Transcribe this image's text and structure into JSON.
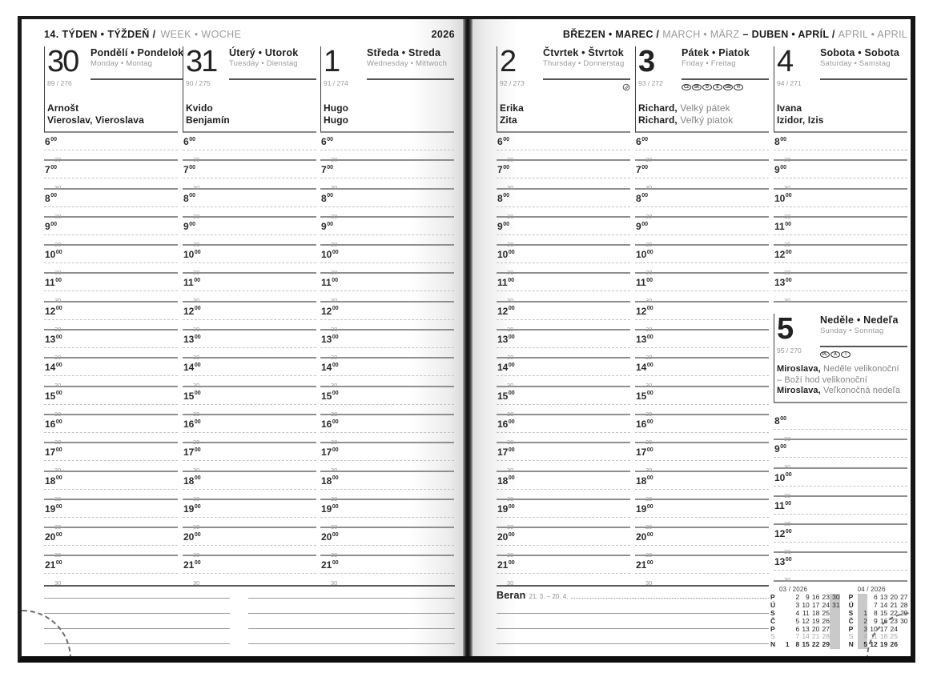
{
  "page_left": {
    "week_header": {
      "bold": "14. TÝDEN • TÝŽDEŇ /",
      "light": "WEEK • WOCHE",
      "year": "2026"
    },
    "days": [
      {
        "num": "30",
        "emph": false,
        "name_local": "Pondělí • Pondelok",
        "name_intl": "Monday • Montag",
        "ordinal": "89 / 276",
        "badges": [],
        "moon": false,
        "names": [
          [
            {
              "t": "Arnošt",
              "s": "b"
            }
          ],
          [
            {
              "t": "Vieroslav, Vieroslava",
              "s": "b"
            }
          ]
        ],
        "hours": {
          "from": 6,
          "to": 21,
          "minutes": "00",
          "half": "30"
        }
      },
      {
        "num": "31",
        "emph": false,
        "name_local": "Úterý • Utorok",
        "name_intl": "Tuesday • Dienstag",
        "ordinal": "90 / 275",
        "badges": [],
        "moon": false,
        "names": [
          [
            {
              "t": "Kvido",
              "s": "b"
            }
          ],
          [
            {
              "t": "Benjamín",
              "s": "b"
            }
          ]
        ],
        "hours": {
          "from": 6,
          "to": 21,
          "minutes": "00",
          "half": "30"
        }
      },
      {
        "num": "1",
        "emph": false,
        "name_local": "Středa • Streda",
        "name_intl": "Wednesday • Mittwoch",
        "ordinal": "91 / 274",
        "badges": [],
        "moon": false,
        "names": [
          [
            {
              "t": "Hugo",
              "s": "b"
            }
          ],
          [
            {
              "t": "Hugo",
              "s": "b"
            }
          ]
        ],
        "hours": {
          "from": 6,
          "to": 21,
          "minutes": "00",
          "half": "30"
        }
      }
    ]
  },
  "page_right": {
    "month_header": {
      "segments": [
        {
          "t": "BŘEZEN • MAREC /",
          "s": "b"
        },
        {
          "t": "MARCH • MÄRZ",
          "s": "g"
        },
        {
          "t": "–",
          "s": "b"
        },
        {
          "t": "DUBEN • APRÍL /",
          "s": "b"
        },
        {
          "t": "APRIL • APRIL",
          "s": "g"
        }
      ]
    },
    "days": [
      {
        "num": "2",
        "emph": false,
        "name_local": "Čtvrtek • Štvrtok",
        "name_intl": "Thursday • Donnerstag",
        "ordinal": "92 / 273",
        "badges": [],
        "moon": true,
        "names": [
          [
            {
              "t": "Erika",
              "s": "b"
            }
          ],
          [
            {
              "t": "Zita",
              "s": "b"
            }
          ]
        ],
        "hours": {
          "from": 6,
          "to": 21,
          "minutes": "00",
          "half": "30"
        }
      },
      {
        "num": "3",
        "emph": true,
        "name_local": "Pátek • Piatok",
        "name_intl": "Friday • Freitag",
        "ordinal": "93 / 272",
        "badges": [
          "CZ",
          "SK",
          "D",
          "E",
          "GB",
          "H"
        ],
        "moon": false,
        "names": [
          [
            {
              "t": "Richard,",
              "s": "b"
            },
            {
              "t": " Velký pátek",
              "s": "g"
            }
          ],
          [
            {
              "t": "Richard,",
              "s": "b"
            },
            {
              "t": " Veľký piatok",
              "s": "g"
            }
          ]
        ],
        "hours": {
          "from": 6,
          "to": 21,
          "minutes": "00",
          "half": "30"
        }
      },
      {
        "num": "4",
        "emph": false,
        "name_local": "Sobota • Sobota",
        "name_intl": "Saturday • Samstag",
        "ordinal": "94 / 271",
        "badges": [],
        "moon": false,
        "names": [
          [
            {
              "t": "Ivana",
              "s": "b"
            }
          ],
          [
            {
              "t": "Izidor, Izis",
              "s": "b"
            }
          ]
        ],
        "hours": {
          "from": 8,
          "to": 13,
          "minutes": "00",
          "half": "30"
        }
      }
    ],
    "sunday": {
      "num": "5",
      "emph": true,
      "name_local": "Neděle • Nedeľa",
      "name_intl": "Sunday • Sonntag",
      "ordinal": "95 / 270",
      "badges": [
        "PL",
        "A",
        "I"
      ],
      "moon": false,
      "names": [
        [
          {
            "t": "Miroslava,",
            "s": "b"
          },
          {
            "t": " Neděle velikonoční",
            "s": "g"
          }
        ],
        [
          {
            "t": "– Boží hod velikonoční",
            "s": "g"
          }
        ],
        [
          {
            "t": "Miroslava,",
            "s": "b"
          },
          {
            "t": " Veľkonočná nedeľa",
            "s": "g"
          }
        ]
      ],
      "hours": {
        "from": 8,
        "to": 13,
        "minutes": "00",
        "half": "30"
      }
    },
    "zodiac": {
      "name": "Beran",
      "range": "21. 3. – 20. 4."
    },
    "mini_calendars": [
      {
        "title": "03 / 2026",
        "highlight_col": 5,
        "rows": [
          {
            "label": "P",
            "cells": [
              "",
              "2",
              "9",
              "16",
              "23",
              "30"
            ]
          },
          {
            "label": "Ú",
            "cells": [
              "",
              "3",
              "10",
              "17",
              "24",
              "31"
            ]
          },
          {
            "label": "S",
            "cells": [
              "",
              "4",
              "11",
              "18",
              "25",
              ""
            ]
          },
          {
            "label": "Č",
            "cells": [
              "",
              "5",
              "12",
              "19",
              "26",
              ""
            ]
          },
          {
            "label": "P",
            "cells": [
              "",
              "6",
              "13",
              "20",
              "27",
              ""
            ]
          },
          {
            "label": "S",
            "cells": [
              "",
              "7",
              "14",
              "21",
              "28",
              ""
            ],
            "gray": true
          },
          {
            "label": "N",
            "cells": [
              "1",
              "8",
              "15",
              "22",
              "29",
              ""
            ],
            "bold": true
          }
        ]
      },
      {
        "title": "04 / 2026",
        "highlight_col": 0,
        "rows": [
          {
            "label": "P",
            "cells": [
              "",
              "6",
              "13",
              "20",
              "27"
            ]
          },
          {
            "label": "Ú",
            "cells": [
              "",
              "7",
              "14",
              "21",
              "28"
            ]
          },
          {
            "label": "S",
            "cells": [
              "1",
              "8",
              "15",
              "22",
              "29"
            ]
          },
          {
            "label": "Č",
            "cells": [
              "2",
              "9",
              "16",
              "23",
              "30"
            ]
          },
          {
            "label": "P",
            "cells": [
              "3",
              "10",
              "17",
              "24",
              ""
            ]
          },
          {
            "label": "S",
            "cells": [
              "4",
              "11",
              "18",
              "25",
              ""
            ],
            "gray": true
          },
          {
            "label": "N",
            "cells": [
              "5",
              "12",
              "19",
              "26",
              ""
            ],
            "bold": true
          }
        ]
      }
    ]
  }
}
